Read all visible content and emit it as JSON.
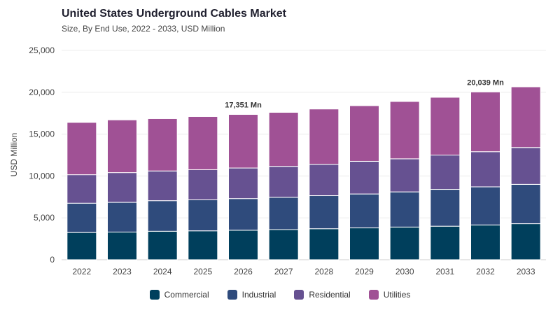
{
  "header": {
    "title": "United States Underground Cables Market",
    "subtitle": "Size, By End Use, 2022 - 2033, USD Million"
  },
  "chart_data": {
    "type": "bar",
    "stacked": true,
    "title": "United States Underground Cables Market",
    "subtitle": "Size, By End Use, 2022 - 2033, USD Million",
    "xlabel": "",
    "ylabel": "USD Million",
    "ylim": [
      0,
      25000
    ],
    "yticks": [
      0,
      5000,
      10000,
      15000,
      20000,
      25000
    ],
    "ytick_labels": [
      "0",
      "5,000",
      "10,000",
      "15,000",
      "20,000",
      "25,000"
    ],
    "grid": true,
    "legend_position": "bottom",
    "categories": [
      "2022",
      "2023",
      "2024",
      "2025",
      "2026",
      "2027",
      "2028",
      "2029",
      "2030",
      "2031",
      "2032",
      "2033"
    ],
    "series": [
      {
        "name": "Commercial",
        "color": "#003f5c",
        "values": [
          3250,
          3300,
          3400,
          3450,
          3520,
          3600,
          3700,
          3800,
          3900,
          4000,
          4150,
          4300
        ]
      },
      {
        "name": "Industrial",
        "color": "#2f4b7c",
        "values": [
          3500,
          3550,
          3650,
          3700,
          3780,
          3850,
          3950,
          4050,
          4200,
          4400,
          4550,
          4700
        ]
      },
      {
        "name": "Residential",
        "color": "#665191",
        "values": [
          3400,
          3550,
          3550,
          3600,
          3650,
          3700,
          3750,
          3900,
          3950,
          4100,
          4200,
          4400
        ]
      },
      {
        "name": "Utilities",
        "color": "#a05195",
        "values": [
          6250,
          6300,
          6250,
          6350,
          6401,
          6450,
          6600,
          6650,
          6850,
          6900,
          7139,
          7250
        ]
      }
    ],
    "annotations": [
      {
        "category": "2026",
        "text": "17,351 Mn"
      },
      {
        "category": "2032",
        "text": "20,039 Mn"
      }
    ]
  }
}
